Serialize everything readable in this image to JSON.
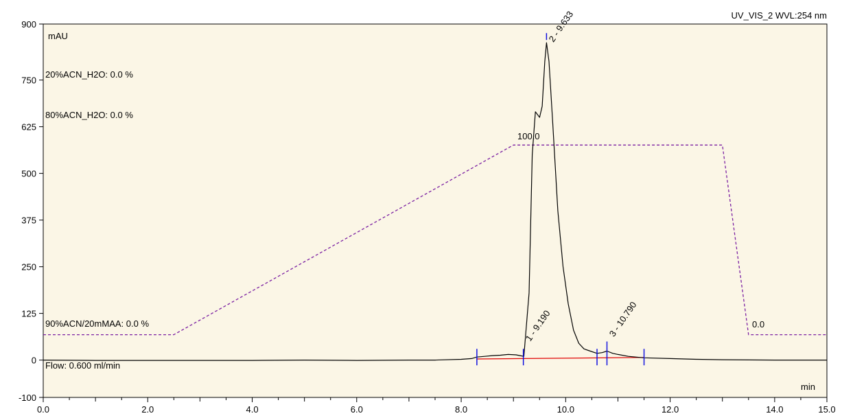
{
  "chart_data": {
    "type": "line",
    "title": "UV_VIS_2 WVL:254 nm",
    "ylabel": "mAU",
    "xlabel": "min",
    "xlim": [
      0,
      15
    ],
    "ylim": [
      -100,
      900
    ],
    "x_ticks": [
      "0.0",
      "2.0",
      "4.0",
      "6.0",
      "8.0",
      "10.0",
      "12.0",
      "14.0",
      "15.0"
    ],
    "x_tick_values": [
      0,
      2,
      4,
      6,
      8,
      10,
      12,
      14,
      15
    ],
    "y_ticks": [
      "-100",
      "0",
      "125",
      "250",
      "375",
      "500",
      "625",
      "750",
      "900"
    ],
    "y_tick_values": [
      -100,
      0,
      125,
      250,
      375,
      500,
      625,
      750,
      900
    ],
    "grid": false,
    "colors": {
      "plot_bg": "#fbf6e6",
      "signal": "#000000",
      "gradient": "#7b1fa2",
      "baseline": "#e00000",
      "peak_marker": "#1010e0",
      "peak_marker_light": "#30c0d0"
    },
    "method_labels": [
      "20%ACN_H2O: 0.0 %",
      "80%ACN_H2O: 0.0 %",
      "90%ACN/20mMAA: 0.0 %"
    ],
    "flow_label": "Flow: 0.600 ml/min",
    "gradient_labels": [
      "100.0",
      "0.0"
    ],
    "series": [
      {
        "kind": "chromatogram",
        "points": [
          [
            0,
            0
          ],
          [
            1,
            -1
          ],
          [
            2,
            -1
          ],
          [
            3,
            -1
          ],
          [
            4,
            -1
          ],
          [
            5,
            0
          ],
          [
            6,
            -1
          ],
          [
            7,
            0
          ],
          [
            7.5,
            0
          ],
          [
            8,
            2
          ],
          [
            8.2,
            4
          ],
          [
            8.3,
            8
          ],
          [
            8.45,
            10
          ],
          [
            8.6,
            12
          ],
          [
            8.75,
            13
          ],
          [
            8.9,
            15
          ],
          [
            9.05,
            14
          ],
          [
            9.2,
            10
          ],
          [
            9.3,
            180
          ],
          [
            9.36,
            550
          ],
          [
            9.42,
            665
          ],
          [
            9.5,
            650
          ],
          [
            9.55,
            680
          ],
          [
            9.6,
            800
          ],
          [
            9.633,
            850
          ],
          [
            9.68,
            800
          ],
          [
            9.75,
            640
          ],
          [
            9.85,
            400
          ],
          [
            9.95,
            250
          ],
          [
            10.05,
            150
          ],
          [
            10.15,
            80
          ],
          [
            10.25,
            45
          ],
          [
            10.35,
            30
          ],
          [
            10.45,
            25
          ],
          [
            10.6,
            18
          ],
          [
            10.7,
            20
          ],
          [
            10.79,
            24
          ],
          [
            10.9,
            18
          ],
          [
            11.0,
            15
          ],
          [
            11.2,
            10
          ],
          [
            11.5,
            6
          ],
          [
            12.0,
            4
          ],
          [
            12.5,
            2
          ],
          [
            13,
            1
          ],
          [
            14,
            0
          ],
          [
            15,
            0
          ]
        ]
      },
      {
        "kind": "gradient",
        "points": [
          [
            0,
            68
          ],
          [
            2.5,
            68
          ],
          [
            9.0,
            576
          ],
          [
            13.0,
            576
          ],
          [
            13.5,
            68
          ],
          [
            15,
            68
          ]
        ]
      }
    ],
    "integration_baseline": [
      [
        8.3,
        3
      ],
      [
        11.5,
        7
      ]
    ],
    "peaks": [
      {
        "label": "1 - 9.190",
        "x": 9.19,
        "y": 12
      },
      {
        "label": "2 - 9.633",
        "x": 9.633,
        "y": 850
      },
      {
        "label": "3 - 10.790",
        "x": 10.79,
        "y": 24
      }
    ],
    "peak_delimiters": [
      8.3,
      9.19,
      10.6,
      10.79,
      11.5
    ]
  }
}
